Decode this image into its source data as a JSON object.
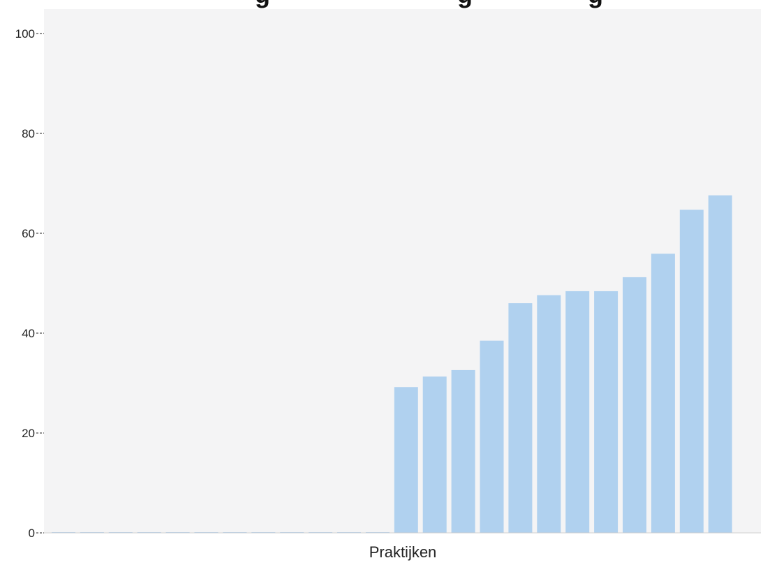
{
  "chart_data": {
    "type": "bar",
    "title": "",
    "xlabel": "Praktijken",
    "ylabel": "",
    "ylim": [
      0,
      100
    ],
    "yticks": [
      0,
      20,
      40,
      60,
      80,
      100
    ],
    "grid": false,
    "legend": "none",
    "plot_background": "#f4f4f5",
    "bar_color": "#b0d1ef",
    "values": [
      0,
      0,
      0,
      0,
      0,
      0,
      0,
      0,
      0,
      0,
      0,
      0,
      29.2,
      31.3,
      32.6,
      38.5,
      46.0,
      47.6,
      48.4,
      48.4,
      51.2,
      55.9,
      64.7,
      67.6
    ]
  }
}
